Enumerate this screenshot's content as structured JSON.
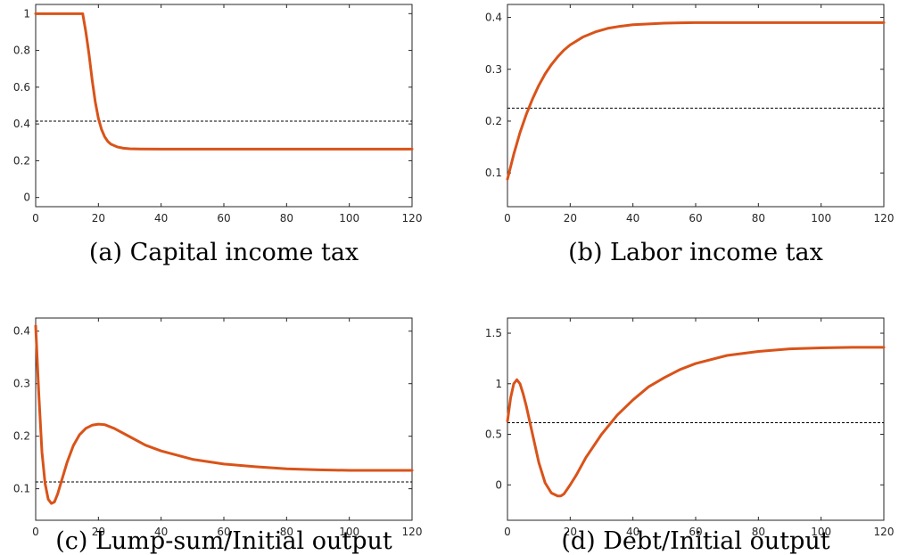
{
  "colors": {
    "series": "#d95319",
    "reference": "#000000",
    "axes": "#262626"
  },
  "chart_data": [
    {
      "type": "line",
      "caption": "(a) Capital income tax",
      "xlim": [
        0,
        120
      ],
      "ylim": [
        -0.05,
        1.05
      ],
      "xticks": [
        0,
        20,
        40,
        60,
        80,
        100,
        120
      ],
      "yticks": [
        0,
        0.2,
        0.4,
        0.6,
        0.8,
        1
      ],
      "ytick_labels": [
        "0",
        "0.2",
        "0.4",
        "0.6",
        "0.8",
        "1"
      ],
      "grid": false,
      "reference_line": 0.415,
      "series": [
        {
          "style": "solid",
          "x": [
            0,
            15,
            16,
            17,
            18,
            19,
            20,
            21,
            22,
            23,
            24,
            26,
            28,
            30,
            33,
            40,
            60,
            80,
            100,
            120
          ],
          "y": [
            1,
            1,
            0.9,
            0.78,
            0.64,
            0.52,
            0.43,
            0.37,
            0.33,
            0.305,
            0.29,
            0.275,
            0.268,
            0.265,
            0.264,
            0.263,
            0.263,
            0.263,
            0.263,
            0.263
          ]
        }
      ]
    },
    {
      "type": "line",
      "caption": "(b) Labor income tax",
      "xlim": [
        0,
        120
      ],
      "ylim": [
        0.035,
        0.425
      ],
      "xticks": [
        0,
        20,
        40,
        60,
        80,
        100,
        120
      ],
      "yticks": [
        0.1,
        0.2,
        0.3,
        0.4
      ],
      "ytick_labels": [
        "0.1",
        "0.2",
        "0.3",
        "0.4"
      ],
      "grid": false,
      "reference_line": 0.225,
      "series": [
        {
          "style": "solid",
          "x": [
            0,
            2,
            4,
            6,
            8,
            10,
            12,
            14,
            16,
            18,
            20,
            24,
            28,
            32,
            36,
            40,
            50,
            60,
            80,
            100,
            120
          ],
          "y": [
            0.088,
            0.136,
            0.178,
            0.213,
            0.243,
            0.269,
            0.291,
            0.309,
            0.324,
            0.337,
            0.347,
            0.362,
            0.372,
            0.379,
            0.383,
            0.386,
            0.389,
            0.39,
            0.39,
            0.39,
            0.39
          ]
        }
      ]
    },
    {
      "type": "line",
      "caption": "(c) Lump-sum/Initial output",
      "xlim": [
        0,
        120
      ],
      "ylim": [
        0.04,
        0.425
      ],
      "xticks": [
        0,
        20,
        40,
        60,
        80,
        100,
        120
      ],
      "yticks": [
        0.1,
        0.2,
        0.3,
        0.4
      ],
      "ytick_labels": [
        "0.1",
        "0.2",
        "0.3",
        "0.4"
      ],
      "grid": false,
      "reference_line": 0.113,
      "series": [
        {
          "style": "solid",
          "x": [
            0,
            1,
            2,
            3,
            4,
            5,
            6,
            7,
            8,
            10,
            12,
            14,
            16,
            18,
            20,
            22,
            25,
            30,
            35,
            40,
            50,
            60,
            70,
            80,
            90,
            100,
            110,
            120
          ],
          "y": [
            0.41,
            0.28,
            0.17,
            0.11,
            0.08,
            0.072,
            0.075,
            0.09,
            0.11,
            0.15,
            0.182,
            0.203,
            0.215,
            0.221,
            0.223,
            0.222,
            0.215,
            0.199,
            0.183,
            0.172,
            0.156,
            0.147,
            0.142,
            0.138,
            0.136,
            0.135,
            0.135,
            0.135
          ]
        }
      ]
    },
    {
      "type": "line",
      "caption": "(d) Debt/Initial output",
      "xlim": [
        0,
        120
      ],
      "ylim": [
        -0.35,
        1.65
      ],
      "xticks": [
        0,
        20,
        40,
        60,
        80,
        100,
        120
      ],
      "yticks": [
        0,
        0.5,
        1,
        1.5
      ],
      "ytick_labels": [
        "0",
        "0.5",
        "1",
        "1.5"
      ],
      "grid": false,
      "reference_line": 0.615,
      "series": [
        {
          "style": "solid",
          "x": [
            0,
            1,
            2,
            3,
            4,
            5,
            6,
            8,
            10,
            12,
            14,
            16,
            17,
            18,
            20,
            22,
            25,
            30,
            35,
            40,
            45,
            50,
            55,
            60,
            70,
            80,
            90,
            100,
            110,
            120
          ],
          "y": [
            0.63,
            0.86,
            1.0,
            1.04,
            1.0,
            0.9,
            0.78,
            0.5,
            0.22,
            0.02,
            -0.08,
            -0.11,
            -0.11,
            -0.09,
            0.0,
            0.1,
            0.27,
            0.5,
            0.69,
            0.84,
            0.97,
            1.06,
            1.14,
            1.2,
            1.28,
            1.32,
            1.345,
            1.355,
            1.36,
            1.36
          ]
        }
      ]
    }
  ]
}
